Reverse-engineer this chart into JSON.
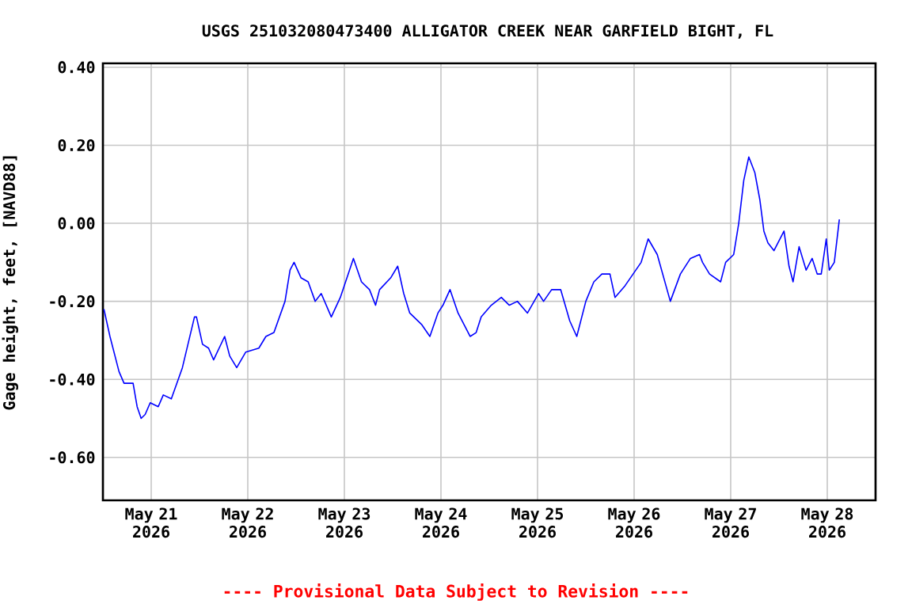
{
  "chart_data": {
    "type": "line",
    "title": "USGS 251032080473400 ALLIGATOR CREEK NEAR GARFIELD BIGHT, FL",
    "ylabel": "Gage height, feet, [NAVD88]",
    "annotations": [
      "---- Provisional Data Subject to Revision ----"
    ],
    "x": [
      "2026-05-21T00:15",
      "2026-05-21T01:45",
      "2026-05-21T04:00",
      "2026-05-21T05:15",
      "2026-05-21T07:30",
      "2026-05-21T08:30",
      "2026-05-21T09:30",
      "2026-05-21T10:30",
      "2026-05-21T11:45",
      "2026-05-21T13:45",
      "2026-05-21T15:00",
      "2026-05-21T17:00",
      "2026-05-21T19:45",
      "2026-05-21T22:45",
      "2026-05-21T23:15",
      "2026-05-22T00:45",
      "2026-05-22T02:15",
      "2026-05-22T03:30",
      "2026-05-22T06:15",
      "2026-05-22T07:30",
      "2026-05-22T09:15",
      "2026-05-22T11:30",
      "2026-05-22T14:45",
      "2026-05-22T16:30",
      "2026-05-22T18:30",
      "2026-05-22T21:15",
      "2026-05-22T22:30",
      "2026-05-22T23:30",
      "2026-05-23T01:15",
      "2026-05-23T03:00",
      "2026-05-23T04:45",
      "2026-05-23T06:15",
      "2026-05-23T08:45",
      "2026-05-23T11:00",
      "2026-05-23T14:15",
      "2026-05-23T16:15",
      "2026-05-23T18:15",
      "2026-05-23T19:45",
      "2026-05-23T20:45",
      "2026-05-23T23:30",
      "2026-05-24T01:15",
      "2026-05-24T02:45",
      "2026-05-24T04:15",
      "2026-05-24T07:15",
      "2026-05-24T09:15",
      "2026-05-24T11:15",
      "2026-05-24T12:30",
      "2026-05-24T14:15",
      "2026-05-24T16:15",
      "2026-05-24T19:15",
      "2026-05-24T20:45",
      "2026-05-24T22:00",
      "2026-05-25T00:30",
      "2026-05-25T03:00",
      "2026-05-25T05:00",
      "2026-05-25T07:00",
      "2026-05-25T09:30",
      "2026-05-25T12:15",
      "2026-05-25T13:30",
      "2026-05-25T15:30",
      "2026-05-25T17:45",
      "2026-05-25T20:00",
      "2026-05-25T21:45",
      "2026-05-26T00:00",
      "2026-05-26T02:00",
      "2026-05-26T04:00",
      "2026-05-26T06:00",
      "2026-05-26T07:15",
      "2026-05-26T09:45",
      "2026-05-26T11:45",
      "2026-05-26T13:45",
      "2026-05-26T15:30",
      "2026-05-26T17:45",
      "2026-05-26T21:00",
      "2026-05-26T23:30",
      "2026-05-27T02:00",
      "2026-05-27T04:15",
      "2026-05-27T05:00",
      "2026-05-27T06:45",
      "2026-05-27T09:30",
      "2026-05-27T10:45",
      "2026-05-27T12:45",
      "2026-05-27T14:00",
      "2026-05-27T15:15",
      "2026-05-27T16:30",
      "2026-05-27T18:00",
      "2026-05-27T19:15",
      "2026-05-27T20:15",
      "2026-05-27T21:15",
      "2026-05-27T22:45",
      "2026-05-28T01:15",
      "2026-05-28T02:30",
      "2026-05-28T03:30",
      "2026-05-28T05:00",
      "2026-05-28T06:45",
      "2026-05-28T08:15",
      "2026-05-28T09:30",
      "2026-05-28T10:30",
      "2026-05-28T11:45",
      "2026-05-28T12:30",
      "2026-05-28T13:45",
      "2026-05-28T15:00"
    ],
    "series": [
      {
        "color": "#0000ff",
        "values": [
          -0.22,
          -0.29,
          -0.38,
          -0.41,
          -0.41,
          -0.47,
          -0.5,
          -0.49,
          -0.46,
          -0.47,
          -0.44,
          -0.45,
          -0.37,
          -0.24,
          -0.24,
          -0.31,
          -0.32,
          -0.35,
          -0.29,
          -0.34,
          -0.37,
          -0.33,
          -0.32,
          -0.29,
          -0.28,
          -0.2,
          -0.12,
          -0.1,
          -0.14,
          -0.15,
          -0.2,
          -0.18,
          -0.24,
          -0.19,
          -0.09,
          -0.15,
          -0.17,
          -0.21,
          -0.17,
          -0.14,
          -0.11,
          -0.18,
          -0.23,
          -0.26,
          -0.29,
          -0.23,
          -0.21,
          -0.17,
          -0.23,
          -0.29,
          -0.28,
          -0.24,
          -0.21,
          -0.19,
          -0.21,
          -0.2,
          -0.23,
          -0.18,
          -0.2,
          -0.17,
          -0.17,
          -0.25,
          -0.29,
          -0.2,
          -0.15,
          -0.13,
          -0.13,
          -0.19,
          -0.16,
          -0.13,
          -0.1,
          -0.04,
          -0.08,
          -0.2,
          -0.13,
          -0.09,
          -0.08,
          -0.1,
          -0.13,
          -0.15,
          -0.1,
          -0.08,
          0.0,
          0.11,
          0.17,
          0.13,
          0.06,
          -0.02,
          -0.05,
          -0.07,
          -0.02,
          -0.11,
          -0.15,
          -0.06,
          -0.12,
          -0.09,
          -0.13,
          -0.13,
          -0.04,
          -0.12,
          -0.1,
          0.01
        ]
      }
    ],
    "xlim": [
      "2026-05-21T00:00",
      "2026-05-29T00:00"
    ],
    "xticks": [
      {
        "value": "2026-05-21T12:00",
        "label": "May 21 2026"
      },
      {
        "value": "2026-05-22T12:00",
        "label": "May 22 2026"
      },
      {
        "value": "2026-05-23T12:00",
        "label": "May 23 2026"
      },
      {
        "value": "2026-05-24T12:00",
        "label": "May 24 2026"
      },
      {
        "value": "2026-05-25T12:00",
        "label": "May 25 2026"
      },
      {
        "value": "2026-05-26T12:00",
        "label": "May 26 2026"
      },
      {
        "value": "2026-05-27T12:00",
        "label": "May 27 2026"
      },
      {
        "value": "2026-05-28T12:00",
        "label": "May 28 2026"
      }
    ],
    "ylim": [
      -0.71,
      0.41
    ],
    "yticks": [
      {
        "value": -0.6,
        "label": "-0.60"
      },
      {
        "value": -0.4,
        "label": "-0.40"
      },
      {
        "value": -0.2,
        "label": "-0.20"
      },
      {
        "value": 0.0,
        "label": "0.00"
      },
      {
        "value": 0.2,
        "label": "0.20"
      },
      {
        "value": 0.4,
        "label": "0.40"
      }
    ],
    "grid": true
  }
}
